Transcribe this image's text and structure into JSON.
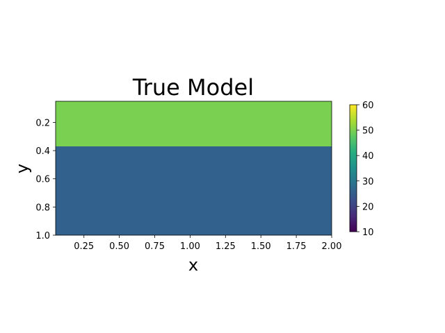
{
  "chart_data": {
    "type": "heatmap",
    "title": "True Model",
    "xlabel": "x",
    "ylabel": "y",
    "xlim": [
      0.05,
      2.0
    ],
    "ylim": [
      1.0,
      0.05
    ],
    "y_inverted": true,
    "xticks": [
      0.25,
      0.5,
      0.75,
      1.0,
      1.25,
      1.5,
      1.75,
      2.0
    ],
    "xtick_labels": [
      "0.25",
      "0.50",
      "0.75",
      "1.00",
      "1.25",
      "1.50",
      "1.75",
      "2.00"
    ],
    "yticks": [
      0.2,
      0.4,
      0.6,
      0.8,
      1.0
    ],
    "ytick_labels": [
      "0.2",
      "0.4",
      "0.6",
      "0.8",
      "1.0"
    ],
    "layers": [
      {
        "y_from": 0.05,
        "y_to": 0.37,
        "value": 50,
        "color": "#7ad151"
      },
      {
        "y_from": 0.37,
        "y_to": 1.0,
        "value": 28,
        "color": "#31618c"
      }
    ],
    "colorbar": {
      "colormap": "viridis",
      "range": [
        10,
        60
      ],
      "ticks": [
        10,
        20,
        30,
        40,
        50,
        60
      ],
      "tick_labels": [
        "10",
        "20",
        "30",
        "40",
        "50",
        "60"
      ]
    }
  }
}
